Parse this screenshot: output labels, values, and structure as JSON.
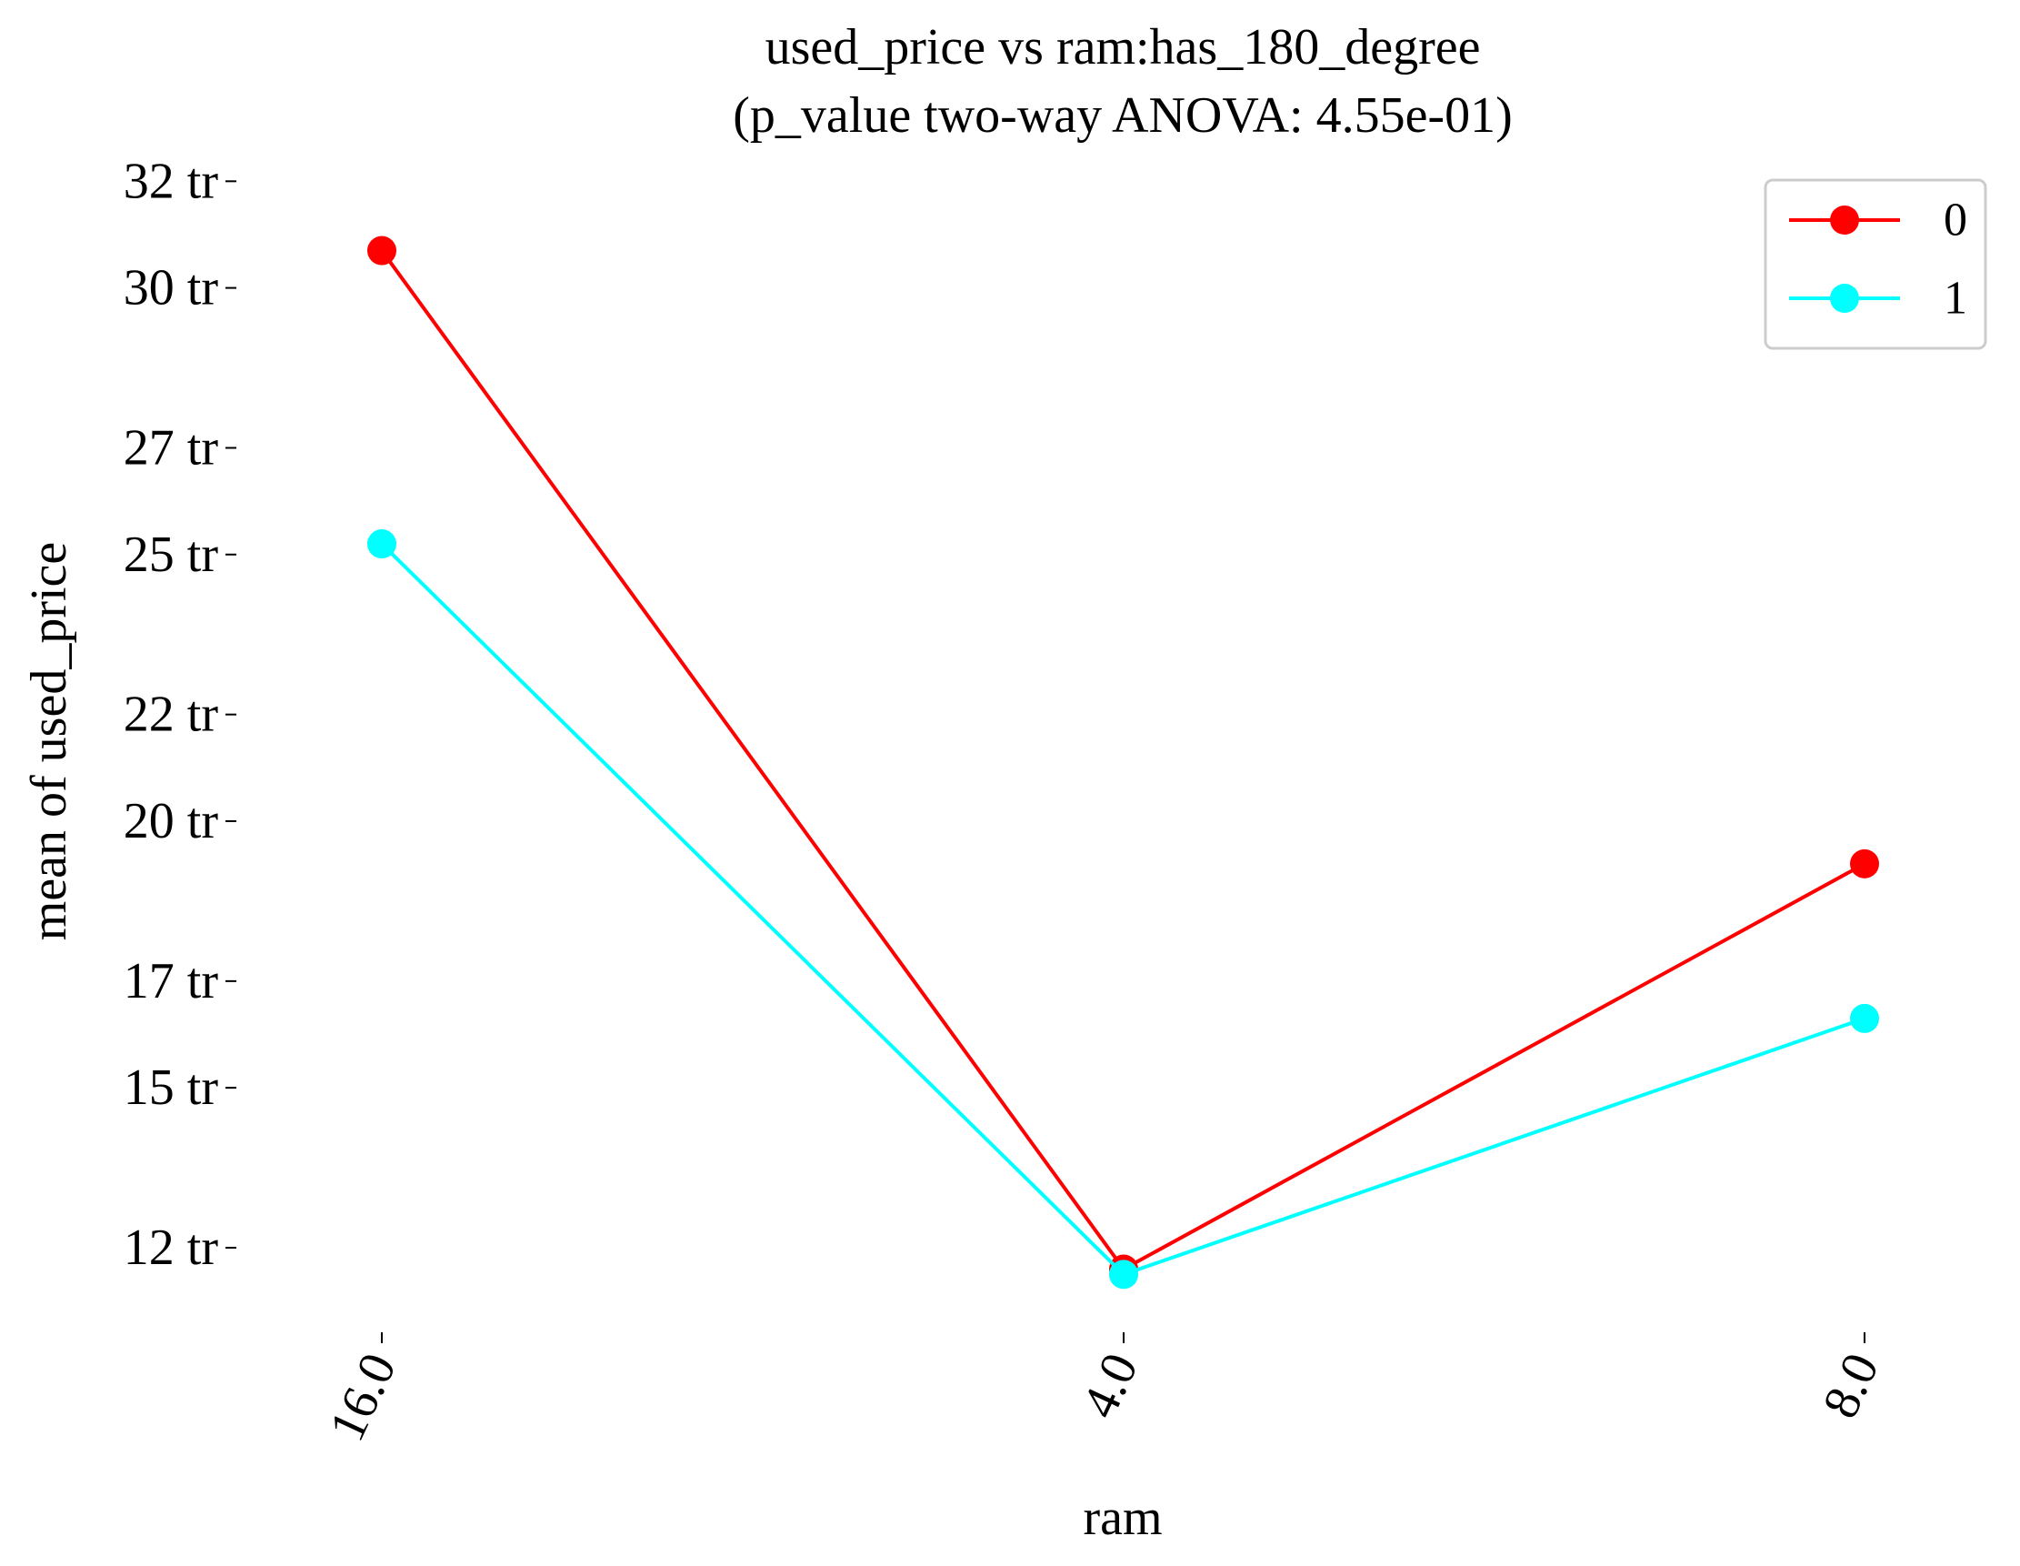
{
  "chart_data": {
    "type": "line",
    "title": "used_price vs ram:has_180_degree",
    "subtitle": "(p_value two-way ANOVA: 4.55e-01)",
    "xlabel": "ram",
    "ylabel": "mean of used_price",
    "categories": [
      "16.0",
      "4.0",
      "8.0"
    ],
    "yticks": [
      {
        "value": 12,
        "label": "12 tr"
      },
      {
        "value": 15,
        "label": "15 tr"
      },
      {
        "value": 17,
        "label": "17 tr"
      },
      {
        "value": 20,
        "label": "20 tr"
      },
      {
        "value": 22,
        "label": "22 tr"
      },
      {
        "value": 25,
        "label": "25 tr"
      },
      {
        "value": 27,
        "label": "27 tr"
      },
      {
        "value": 30,
        "label": "30 tr"
      },
      {
        "value": 32,
        "label": "32 tr"
      }
    ],
    "ylim": [
      10.5,
      32.5
    ],
    "grid": false,
    "legend_position": "top-right",
    "series": [
      {
        "name": "0",
        "color": "#ff0000",
        "values": [
          30.7,
          11.6,
          19.2
        ]
      },
      {
        "name": "1",
        "color": "#00ffff",
        "values": [
          25.2,
          11.5,
          16.3
        ]
      }
    ]
  }
}
